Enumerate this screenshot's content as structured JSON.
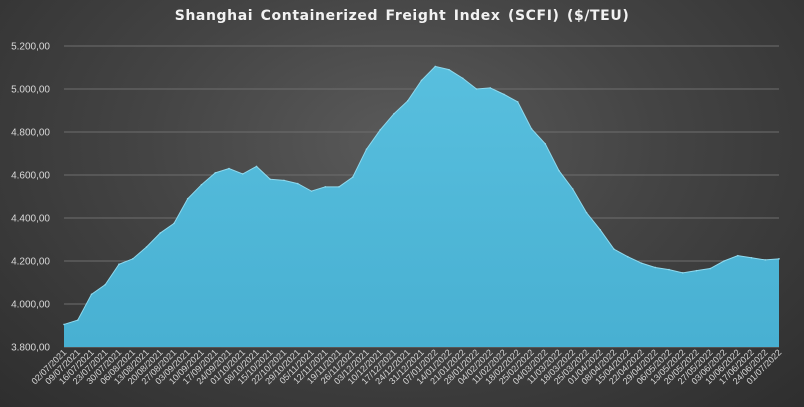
{
  "chart_data": {
    "type": "area",
    "title": "Shanghai Containerized Freight Index  (SCFI) ($/TEU)",
    "xlabel": "",
    "ylabel": "",
    "ylim": [
      3800,
      5200
    ],
    "y_ticks": [
      "3.800,00",
      "4.000,00",
      "4.200,00",
      "4.400,00",
      "4.600,00",
      "4.800,00",
      "5.000,00",
      "5.200,00"
    ],
    "y_tick_values": [
      3800,
      4000,
      4200,
      4400,
      4600,
      4800,
      5000,
      5200
    ],
    "grid": true,
    "legend": "none",
    "colors": {
      "area": "#4db6d6",
      "area_edge": "#8fd9ee",
      "grid": "#6e6e6e",
      "text": "#d9d9d9"
    },
    "x": [
      "02/07/2021",
      "09/07/2021",
      "16/07/2021",
      "23/07/2021",
      "30/07/2021",
      "06/08/2021",
      "13/08/2021",
      "20/08/2021",
      "27/08/2021",
      "03/09/2021",
      "10/09/2021",
      "17/09/2021",
      "24/09/2021",
      "01/10/2021",
      "08/10/2021",
      "15/10/2021",
      "22/10/2021",
      "29/10/2021",
      "05/11/2021",
      "12/11/2021",
      "19/11/2021",
      "26/11/2021",
      "03/12/2021",
      "10/12/2021",
      "17/12/2021",
      "24/12/2021",
      "31/12/2021",
      "07/01/2022",
      "14/01/2022",
      "21/01/2022",
      "28/01/2022",
      "04/02/2022",
      "11/02/2022",
      "18/02/2022",
      "25/02/2022",
      "04/03/2022",
      "11/03/2022",
      "18/03/2022",
      "25/03/2022",
      "01/04/2022",
      "08/04/2022",
      "15/04/2022",
      "22/04/2022",
      "29/04/2022",
      "06/05/2022",
      "13/05/2022",
      "20/05/2022",
      "27/05/2022",
      "03/06/2022",
      "10/06/2022",
      "17/06/2022",
      "24/06/2022",
      "01/07/2022"
    ],
    "values": [
      3905,
      3925,
      4045,
      4090,
      4185,
      4210,
      4265,
      4330,
      4375,
      4490,
      4555,
      4610,
      4630,
      4605,
      4640,
      4580,
      4575,
      4560,
      4525,
      4545,
      4545,
      4590,
      4720,
      4810,
      4885,
      4945,
      5040,
      5105,
      5090,
      5050,
      5000,
      5005,
      4975,
      4940,
      4815,
      4745,
      4620,
      4535,
      4425,
      4345,
      4255,
      4220,
      4190,
      4170,
      4160,
      4145,
      4155,
      4165,
      4200,
      4225,
      4215,
      4205,
      4210
    ]
  }
}
